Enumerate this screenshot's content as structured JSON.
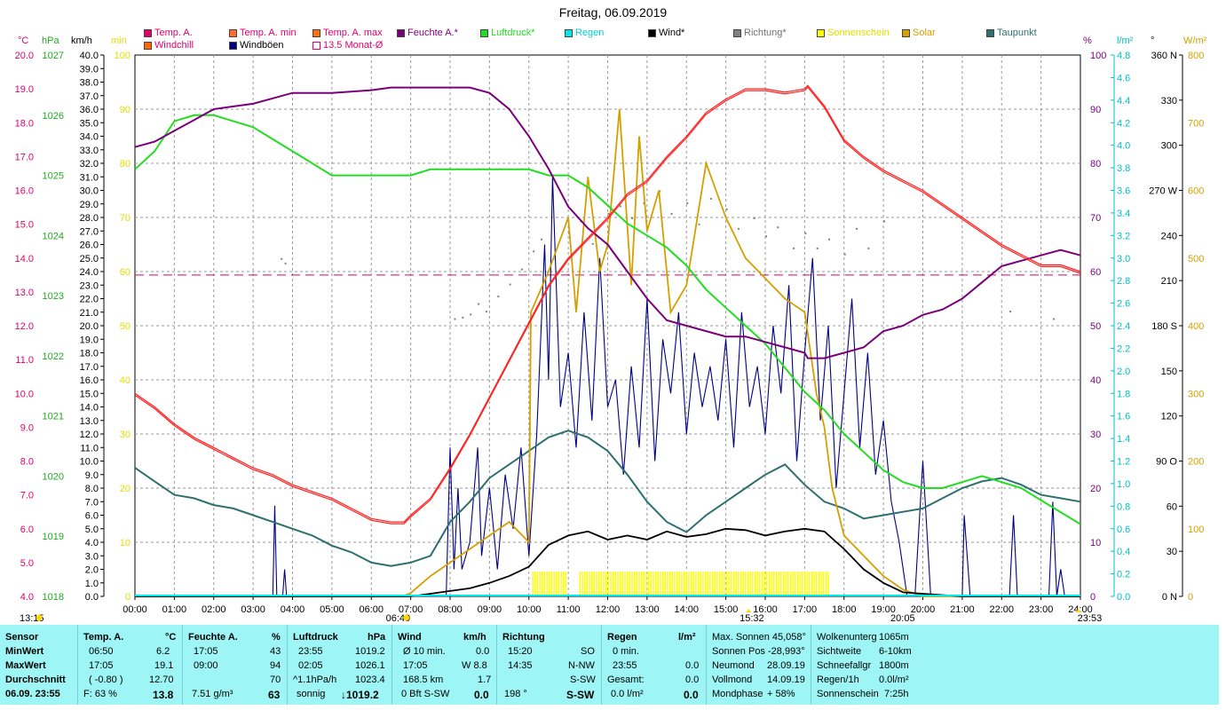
{
  "title": "Freitag, 06.09.2019",
  "legend": [
    {
      "label": "Temp. A.",
      "color": "#e0006c"
    },
    {
      "label": "Temp. A. min",
      "color": "#ff7030"
    },
    {
      "label": "Temp. A. max",
      "color": "#ff7010"
    },
    {
      "label": "Feuchte A.*",
      "color": "#7a007a"
    },
    {
      "label": "Luftdruck*",
      "color": "#22dd22"
    },
    {
      "label": "Regen",
      "color": "#00e8e8"
    },
    {
      "label": "Wind*",
      "color": "#000000"
    },
    {
      "label": "Richtung*",
      "color": "#808080"
    },
    {
      "label": "Sonnenschein",
      "color": "#ffff00"
    },
    {
      "label": "Solar",
      "color": "#d4a000"
    },
    {
      "label": "Taupunkt",
      "color": "#2e6f6f"
    },
    {
      "label": "Windchill",
      "color": "#ff6a00"
    },
    {
      "label": "Windböen",
      "color": "#000080"
    },
    {
      "label": "13.5 Monat-Ø",
      "color": "#e0006c"
    }
  ],
  "axis_units": {
    "temp": "°C",
    "hpa": "hPa",
    "kmh": "km/h",
    "min": "min",
    "pct": "%",
    "rain": "l/m²",
    "deg": "°",
    "wm2": "W/m²"
  },
  "chart_data": {
    "type": "line",
    "title": "Freitag, 06.09.2019",
    "x_ticks": [
      "00:00",
      "01:00",
      "02:00",
      "03:00",
      "04:00",
      "05:00",
      "06:00",
      "07:00",
      "08:00",
      "09:00",
      "10:00",
      "11:00",
      "12:00",
      "13:00",
      "14:00",
      "15:00",
      "16:00",
      "17:00",
      "18:00",
      "19:00",
      "20:00",
      "21:00",
      "22:00",
      "23:00",
      "24:00"
    ],
    "temp_axis": {
      "unit": "°C",
      "range": [
        4.0,
        20.0
      ],
      "ticks": [
        "20.0",
        "19.0",
        "18.0",
        "17.0",
        "16.0",
        "15.0",
        "14.0",
        "13.0",
        "12.0",
        "11.0",
        "10.0",
        "9.0",
        "8.0",
        "7.0",
        "6.0",
        "5.0",
        "4.0"
      ]
    },
    "pressure_axis": {
      "unit": "hPa",
      "range": [
        1018,
        1027
      ],
      "ticks": [
        "1027",
        "1026",
        "1025",
        "1024",
        "1023",
        "1022",
        "1021",
        "1020",
        "1019",
        "1018"
      ]
    },
    "wind_axis": {
      "unit": "km/h",
      "range": [
        0,
        40
      ],
      "step": 1
    },
    "minutes_axis": {
      "unit": "min",
      "range": [
        0,
        100
      ]
    },
    "humidity_axis": {
      "unit": "%",
      "range": [
        0,
        100
      ],
      "ticks": [
        "100",
        "90",
        "80",
        "70",
        "60",
        "50",
        "40",
        "30",
        "20",
        "10",
        "0"
      ]
    },
    "rain_axis": {
      "unit": "l/m²",
      "range": [
        0,
        4.8
      ],
      "ticks": [
        "4.8",
        "4.6",
        "4.4",
        "4.2",
        "4.0",
        "3.8",
        "3.6",
        "3.4",
        "3.2",
        "3.0",
        "2.8",
        "2.6",
        "2.4",
        "2.2",
        "2.0",
        "1.8",
        "1.6",
        "1.4",
        "1.2",
        "1.0",
        "0.8",
        "0.6",
        "0.4",
        "0.2",
        "0.0"
      ]
    },
    "direction_axis": {
      "unit": "°",
      "range": [
        0,
        360
      ],
      "ticks": [
        "360 N",
        "330",
        "300",
        "270 W",
        "240",
        "210",
        "180 S",
        "150",
        "120",
        "90 O",
        "60",
        "30",
        "0 N"
      ]
    },
    "solar_axis": {
      "unit": "W/m²",
      "range": [
        0,
        800
      ],
      "ticks": [
        "800",
        "700",
        "600",
        "500",
        "400",
        "300",
        "200",
        "100",
        "0"
      ]
    },
    "month_avg_temp": 13.5,
    "series": [
      {
        "name": "Temp. A.",
        "color": "#ff2020",
        "axis": "temp",
        "x": [
          0,
          0.5,
          1,
          1.5,
          2,
          2.5,
          3,
          3.5,
          4,
          4.5,
          5,
          5.5,
          6,
          6.5,
          6.83,
          7,
          7.5,
          8,
          8.5,
          9,
          9.5,
          10,
          10.5,
          11,
          11.5,
          12,
          12.5,
          13,
          13.5,
          14,
          14.5,
          15,
          15.5,
          16,
          16.5,
          17,
          17.08,
          17.5,
          18,
          18.5,
          19,
          19.5,
          20,
          20.5,
          21,
          21.5,
          22,
          22.5,
          23,
          23.5,
          24
        ],
        "y": [
          10.0,
          9.6,
          9.1,
          8.7,
          8.4,
          8.1,
          7.8,
          7.6,
          7.3,
          7.1,
          6.9,
          6.6,
          6.3,
          6.2,
          6.2,
          6.4,
          6.9,
          7.8,
          8.8,
          9.9,
          11.0,
          12.1,
          13.2,
          14.0,
          14.6,
          15.2,
          15.9,
          16.3,
          17.0,
          17.6,
          18.3,
          18.7,
          19.0,
          19.0,
          18.9,
          19.0,
          19.1,
          18.5,
          17.5,
          17.0,
          16.6,
          16.3,
          16.0,
          15.6,
          15.2,
          14.8,
          14.4,
          14.1,
          13.8,
          13.8,
          13.6
        ]
      },
      {
        "name": "Feuchte A.*",
        "color": "#7a007a",
        "axis": "humidity",
        "x": [
          0,
          0.5,
          1,
          1.5,
          2,
          2.5,
          3,
          3.5,
          4,
          5,
          6,
          6.5,
          7,
          8,
          8.5,
          9,
          9.5,
          10,
          10.5,
          11,
          11.5,
          12,
          12.5,
          13,
          13.5,
          14,
          14.5,
          15,
          15.5,
          16,
          16.5,
          17,
          17.08,
          17.5,
          18,
          18.5,
          19,
          19.5,
          20,
          20.5,
          21,
          21.5,
          22,
          22.5,
          23,
          23.5,
          24
        ],
        "y": [
          83,
          84,
          86,
          88,
          90,
          90.5,
          91,
          92,
          93,
          93,
          93.5,
          94,
          94,
          94,
          94,
          93,
          90,
          85,
          79,
          72,
          68,
          65,
          60,
          55,
          51,
          50,
          49,
          48,
          48,
          47,
          46,
          45,
          44,
          44,
          45,
          46,
          49,
          50,
          52,
          53,
          55,
          58,
          61,
          62,
          63,
          64,
          63
        ]
      },
      {
        "name": "Luftdruck*",
        "color": "#22dd22",
        "axis": "pressure",
        "x": [
          0,
          0.5,
          1,
          1.5,
          2,
          2.5,
          3,
          3.5,
          4,
          4.5,
          5,
          5.5,
          6,
          6.5,
          7,
          7.5,
          8,
          8.5,
          9,
          9.5,
          10,
          10.5,
          11,
          11.5,
          12,
          12.5,
          13,
          13.5,
          14,
          14.5,
          15,
          15.5,
          16,
          16.5,
          17,
          17.5,
          18,
          18.5,
          19,
          19.5,
          20,
          20.5,
          21,
          21.5,
          22,
          22.5,
          23,
          23.5,
          24
        ],
        "y": [
          1025.1,
          1025.4,
          1025.9,
          1026.0,
          1026.0,
          1025.9,
          1025.8,
          1025.6,
          1025.4,
          1025.2,
          1025.0,
          1025.0,
          1025.0,
          1025.0,
          1025.0,
          1025.1,
          1025.1,
          1025.1,
          1025.1,
          1025.1,
          1025.1,
          1025.0,
          1025.0,
          1024.8,
          1024.5,
          1024.2,
          1024.0,
          1023.8,
          1023.5,
          1023.1,
          1022.8,
          1022.5,
          1022.2,
          1021.8,
          1021.4,
          1021.1,
          1020.7,
          1020.4,
          1020.1,
          1019.9,
          1019.8,
          1019.8,
          1019.9,
          1020.0,
          1019.9,
          1019.8,
          1019.6,
          1019.4,
          1019.2
        ]
      },
      {
        "name": "Taupunkt",
        "color": "#2e6f6f",
        "axis": "temp",
        "x": [
          0,
          0.5,
          1,
          1.5,
          2,
          2.5,
          3,
          3.5,
          4,
          4.5,
          5,
          5.5,
          6,
          6.5,
          7,
          7.5,
          8,
          8.5,
          9,
          9.5,
          10,
          10.5,
          11,
          11.5,
          12,
          12.5,
          13,
          13.5,
          14,
          14.5,
          15,
          15.5,
          16,
          16.5,
          17,
          17.5,
          18,
          18.5,
          19,
          19.5,
          20,
          20.5,
          21,
          21.5,
          22,
          22.5,
          23,
          23.5,
          24
        ],
        "y": [
          7.8,
          7.4,
          7.0,
          6.9,
          6.7,
          6.6,
          6.4,
          6.2,
          6.0,
          5.8,
          5.5,
          5.3,
          5.0,
          4.9,
          5.0,
          5.2,
          6.2,
          6.8,
          7.5,
          7.9,
          8.3,
          8.7,
          8.9,
          8.7,
          8.3,
          7.6,
          6.8,
          6.2,
          5.9,
          6.4,
          6.8,
          7.2,
          7.6,
          7.9,
          7.3,
          6.8,
          6.6,
          6.3,
          6.4,
          6.5,
          6.6,
          6.9,
          7.2,
          7.4,
          7.5,
          7.3,
          7.0,
          6.9,
          6.8
        ]
      },
      {
        "name": "Solar",
        "color": "#d4a000",
        "axis": "solar",
        "x": [
          0,
          6.8,
          7,
          7.5,
          8,
          8.5,
          9,
          9.5,
          10,
          10.05,
          10.5,
          11,
          11.2,
          11.5,
          11.8,
          12,
          12.3,
          12.6,
          12.8,
          13,
          13.3,
          13.6,
          14,
          14.5,
          15,
          15.5,
          16,
          16.5,
          17,
          17.3,
          17.5,
          17.7,
          18,
          18.5,
          19,
          19.5,
          20,
          24
        ],
        "y": [
          0,
          0,
          5,
          30,
          50,
          70,
          90,
          110,
          80,
          420,
          480,
          560,
          420,
          620,
          480,
          520,
          720,
          460,
          680,
          540,
          600,
          420,
          460,
          640,
          560,
          500,
          470,
          440,
          420,
          300,
          250,
          160,
          90,
          60,
          30,
          10,
          0,
          0
        ]
      },
      {
        "name": "Wind*",
        "color": "#000000",
        "axis": "wind",
        "x": [
          0,
          7,
          7.5,
          8,
          8.5,
          9,
          9.5,
          10,
          10.5,
          11,
          11.5,
          12,
          12.5,
          13,
          13.5,
          14,
          14.5,
          15,
          15.5,
          16,
          16.5,
          17,
          17.5,
          18,
          18.5,
          19,
          19.5,
          20,
          20.5,
          21,
          24
        ],
        "y": [
          0,
          0,
          0.2,
          0.4,
          0.6,
          1.0,
          1.5,
          2.2,
          3.8,
          4.5,
          4.8,
          4.2,
          4.5,
          4.2,
          4.8,
          4.4,
          4.6,
          5.0,
          4.9,
          4.5,
          4.8,
          5.0,
          4.8,
          3.5,
          2.0,
          1.0,
          0.3,
          0.2,
          0.1,
          0,
          0
        ]
      },
      {
        "name": "Windböen",
        "color": "#000080",
        "axis": "wind",
        "x": [
          0,
          3.5,
          3.55,
          3.6,
          3.75,
          3.8,
          3.85,
          7.9,
          8,
          8.1,
          8.2,
          8.3,
          8.5,
          8.7,
          8.8,
          9.0,
          9.2,
          9.4,
          9.6,
          9.8,
          10.0,
          10.2,
          10.4,
          10.5,
          10.6,
          10.8,
          11.0,
          11.2,
          11.4,
          11.6,
          11.8,
          12.0,
          12.2,
          12.4,
          12.6,
          12.8,
          13.0,
          13.2,
          13.4,
          13.6,
          13.8,
          14.0,
          14.2,
          14.4,
          14.6,
          14.8,
          15.0,
          15.2,
          15.4,
          15.6,
          15.8,
          16.0,
          16.2,
          16.4,
          16.6,
          16.8,
          17.0,
          17.2,
          17.4,
          17.6,
          17.8,
          18.0,
          18.2,
          18.4,
          18.6,
          18.8,
          19.0,
          19.2,
          19.4,
          19.6,
          19.8,
          20.0,
          20.2,
          20.4,
          21.0,
          21.05,
          21.2,
          22.2,
          22.3,
          22.4,
          23.2,
          23.3,
          23.4,
          23.5,
          23.6,
          24
        ],
        "y": [
          0,
          0,
          6.7,
          0,
          0,
          2,
          0,
          0,
          11,
          2,
          8,
          2,
          4,
          11,
          3,
          8,
          2,
          9,
          5,
          11,
          3,
          12,
          26,
          16,
          31,
          14,
          18,
          11,
          21,
          13,
          25,
          14,
          16,
          9,
          17,
          11,
          22,
          10,
          19,
          15,
          21,
          12,
          18,
          14,
          17,
          13,
          19,
          11,
          21,
          14,
          17,
          12,
          20,
          15,
          23,
          10,
          18,
          25,
          13,
          20,
          8,
          15,
          22,
          11,
          18,
          9,
          13,
          7,
          4,
          0,
          0,
          10,
          0,
          0,
          0,
          6,
          0,
          0,
          6,
          0,
          0,
          7,
          0,
          2,
          0,
          0
        ]
      }
    ],
    "bottom_markers": [
      {
        "time": "13:15",
        "kind": "sunrise-like"
      },
      {
        "time": "06:49",
        "kind": "sunrise"
      },
      {
        "time": "15:32",
        "kind": "culmination"
      },
      {
        "time": "20:05",
        "kind": "sunset"
      },
      {
        "time": "23:53",
        "kind": "end"
      }
    ]
  },
  "bottom_panel": {
    "col1": {
      "h": "Sensor",
      "r1": "MinWert",
      "r2": "MaxWert",
      "r3": "Durchschnitt",
      "r4": "06.09.  23:55"
    },
    "col2": {
      "h": "Temp. A.",
      "hu": "°C",
      "r1a": "06:50",
      "r1b": "6.2",
      "r2a": "17:05",
      "r2b": "19.1",
      "r3a": "( -0.80 )",
      "r3b": "12.70",
      "r4a": "F: 63 %",
      "r4b": "13.8"
    },
    "col3": {
      "h": "Feuchte A.",
      "hu": "%",
      "r1a": "17:05",
      "r1b": "43",
      "r2a": "09:00",
      "r2b": "94",
      "r3b": "70",
      "r4a": "7.51 g/m³",
      "r4b": "63"
    },
    "col4": {
      "h": "Luftdruck",
      "hu": "hPa",
      "r1a": "23:55",
      "r1b": "1019.2",
      "r2a": "02:05",
      "r2b": "1026.1",
      "r3a": "^1.1hPa/h",
      "r3b": "1023.4",
      "r4a": "sonnig",
      "r4b": "↓1019.2"
    },
    "col5": {
      "h": "Wind",
      "hu": "km/h",
      "r1a": "Ø 10 min.",
      "r1b": "0.0",
      "r2a": "17:05",
      "r2b": "W 8.8",
      "r3a": "168.5 km",
      "r3b": "1.7",
      "r4a": "0 Bft S-SW",
      "r4b": "0.0"
    },
    "col6": {
      "h": "Richtung",
      "r1a": "15:20",
      "r1b": "SO",
      "r2a": "14:35",
      "r2b": "N-NW",
      "r3b": "S-SW",
      "r4a": "198 °",
      "r4b": "S-SW"
    },
    "col7": {
      "h": "Regen",
      "hu": "l/m²",
      "r1a": "0 min.",
      "r2a": "23:55",
      "r2b": "0.0",
      "r3a": "Gesamt:",
      "r3b": "0.0",
      "r4a": "0.0 l/m²",
      "r4b": "0.0"
    },
    "col8": {
      "l1": "Max. Sonnen 45,058°",
      "l2": "Sonnen Pos  -28,993°",
      "l3a": "Neumond",
      "l3b": "28.09.19",
      "l4a": "Vollmond",
      "l4b": "14.09.19",
      "l5a": "Mondphase",
      "l5b": "+ 58%"
    },
    "col9": {
      "l1a": "Wolkenunterg",
      "l1b": "1065m",
      "l2a": "Sichtweite",
      "l2b": "6-10km",
      "l3a": "Schneefallgr",
      "l3b": "1800m",
      "l4a": "Regen/1h",
      "l4b": "0.0l/m²",
      "l5a": "Sonnenschein",
      "l5b": "7:25h"
    }
  }
}
